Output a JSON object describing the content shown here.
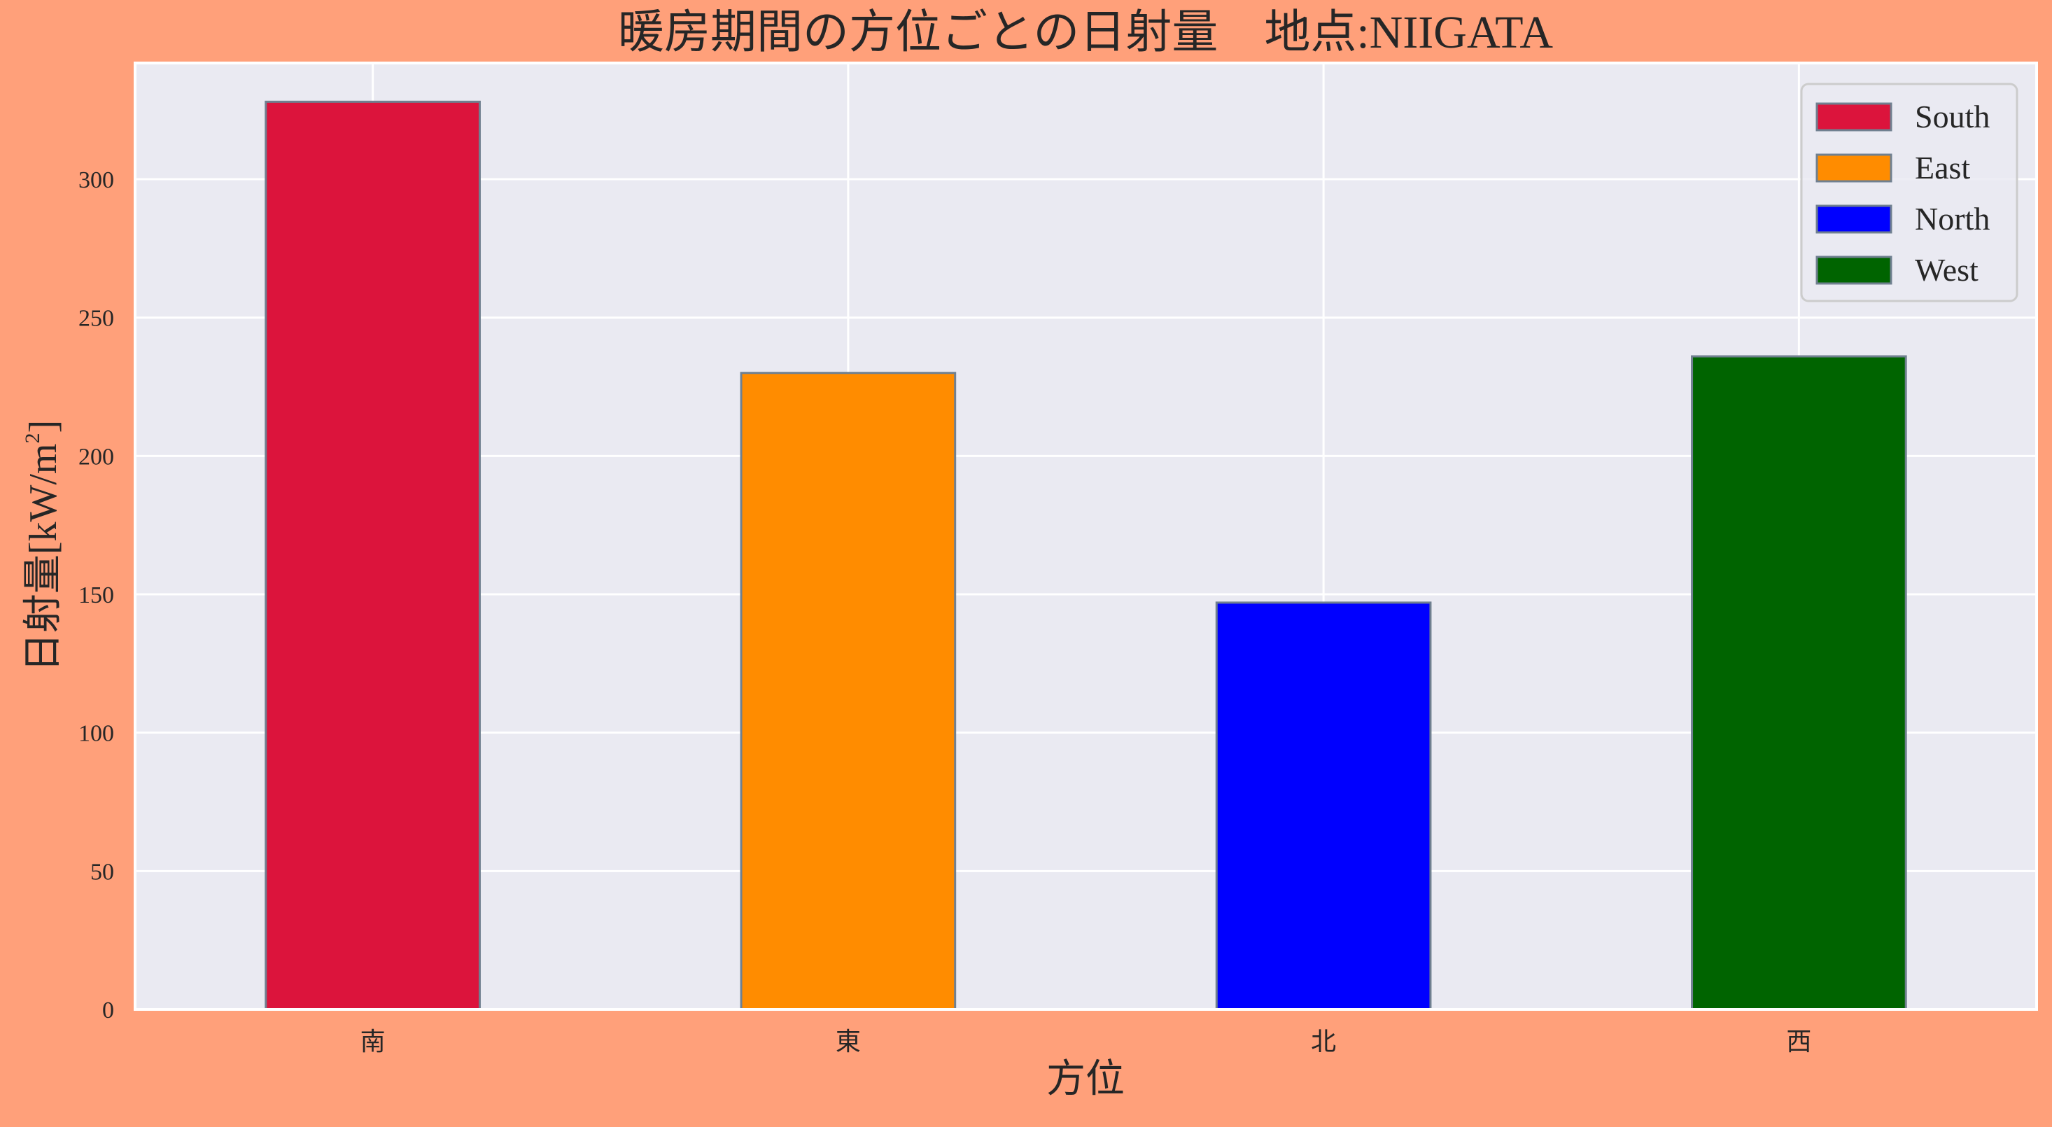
{
  "chart_data": {
    "type": "bar",
    "title": "暖房期間の方位ごとの日射量　地点:NIIGATA",
    "xlabel": "方位",
    "ylabel_main": "日射量[kW/m",
    "ylabel_sup": "2",
    "ylabel_end": "]",
    "categories": [
      "南",
      "東",
      "北",
      "西"
    ],
    "values": [
      328,
      230,
      147,
      236
    ],
    "series_names": [
      "South",
      "East",
      "North",
      "West"
    ],
    "colors": [
      "#DC143C",
      "#FF8C00",
      "#0000FF",
      "#006400"
    ],
    "edge_color": "#708090",
    "ylim": [
      0,
      342
    ],
    "yticks": [
      0,
      50,
      100,
      150,
      200,
      250,
      300
    ],
    "grid": true,
    "legend_position": "top-right",
    "background": "#FFA07A",
    "plot_background": "#EAEAF2"
  }
}
